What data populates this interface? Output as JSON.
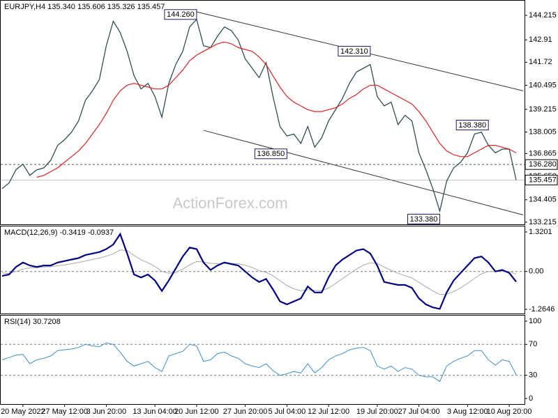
{
  "chart_data": {
    "type": "financial",
    "header": "EURJPY,H4  135.340 135.606 135.326 135.457",
    "watermark": "ActionForex.com",
    "categories": [
      null,
      null,
      null,
      "20 May 2022",
      null,
      null,
      null,
      null,
      null,
      "27 May 12:00",
      null,
      null,
      null,
      null,
      null,
      "3 Jun 20:00",
      null,
      null,
      null,
      null,
      null,
      null,
      "13 Jun 04:00",
      null,
      null,
      null,
      null,
      null,
      "20 Jun 12:00",
      null,
      null,
      null,
      null,
      null,
      null,
      "27 Jun 20:00",
      null,
      null,
      null,
      null,
      null,
      "5 Jul 04:00",
      null,
      null,
      null,
      null,
      null,
      "12 Jul 12:00",
      null,
      null,
      null,
      null,
      null,
      null,
      "19 Jul 20:00",
      null,
      null,
      null,
      null,
      null,
      "27 Jul 04:00",
      null,
      null,
      null,
      null,
      null,
      null,
      "3 Aug 12:00",
      null,
      null,
      null,
      null,
      null,
      "10 Aug 20:00",
      null
    ],
    "price": {
      "ylim": [
        133.1,
        145.03
      ],
      "yticks": [
        144.215,
        142.91,
        141.72,
        140.495,
        139.215,
        138.005,
        136.865,
        {
          "value": 135.65,
          "label": "135.650"
        },
        134.405,
        133.215
      ],
      "close": {
        "color": "#2f4f4f",
        "values": [
          135.0,
          135.3,
          136.0,
          136.3,
          135.7,
          136.0,
          136.1,
          136.5,
          137.3,
          137.6,
          138.0,
          138.6,
          139.7,
          140.2,
          140.8,
          142.6,
          143.9,
          143.3,
          142.3,
          141.0,
          140.3,
          140.6,
          139.9,
          138.8,
          140.6,
          141.6,
          142.3,
          143.6,
          144.0,
          142.6,
          142.5,
          143.1,
          143.6,
          143.4,
          142.9,
          141.9,
          141.4,
          140.9,
          141.7,
          139.9,
          138.3,
          137.8,
          137.9,
          137.4,
          138.3,
          137.2,
          137.7,
          138.6,
          139.2,
          139.8,
          140.6,
          141.2,
          141.4,
          141.6,
          139.9,
          139.4,
          139.6,
          138.4,
          138.9,
          138.6,
          136.9,
          136.0,
          135.0,
          133.8,
          135.4,
          136.1,
          136.4,
          136.9,
          137.9,
          138.0,
          137.3,
          136.9,
          137.1,
          137.1,
          135.457
        ]
      },
      "ma": {
        "color": "#e02020",
        "values": [
          null,
          null,
          null,
          null,
          null,
          135.6,
          135.7,
          135.9,
          136.1,
          136.4,
          136.7,
          137.0,
          137.4,
          137.9,
          138.4,
          139.0,
          139.7,
          140.2,
          140.5,
          140.6,
          140.5,
          140.4,
          140.3,
          140.3,
          140.5,
          140.9,
          141.3,
          141.8,
          142.1,
          142.3,
          142.5,
          142.7,
          142.8,
          142.7,
          142.5,
          142.4,
          142.3,
          142.0,
          141.6,
          141.0,
          140.4,
          139.9,
          139.6,
          139.4,
          139.2,
          139.1,
          139.1,
          139.2,
          139.3,
          139.5,
          139.8,
          140.0,
          140.3,
          140.5,
          140.5,
          140.3,
          140.1,
          139.9,
          139.7,
          139.5,
          139.1,
          138.6,
          138.0,
          137.4,
          137.0,
          136.8,
          136.7,
          136.7,
          136.9,
          137.1,
          137.3,
          137.3,
          137.2,
          137.1,
          136.9
        ]
      },
      "trendlines": [
        {
          "x": [
            28,
            75
          ],
          "y": [
            144.4,
            140.2
          ]
        },
        {
          "x": [
            29,
            75
          ],
          "y": [
            138.1,
            133.6
          ]
        }
      ],
      "level": {
        "value": 136.28,
        "label": "136.280"
      },
      "last": 135.457,
      "annotations": [
        {
          "x": 28,
          "value": 144.26,
          "label": "144.260"
        },
        {
          "x": 53,
          "value": 142.31,
          "label": "142.310"
        },
        {
          "x": 41,
          "value": 136.85,
          "label": "136.850"
        },
        {
          "x": 70,
          "value": 138.38,
          "label": "138.380"
        },
        {
          "x": 63,
          "value": 133.38,
          "label": "133.380"
        }
      ]
    },
    "macd": {
      "title": "MACD(12,26,9) -0.3419 -0.0937",
      "ylim": [
        -1.404,
        1.506
      ],
      "yticks": [
        1.3201,
        {
          "value": 0,
          "label": "0.00"
        },
        -1.2646
      ],
      "levels": [
        0
      ],
      "series": [
        {
          "color": "#000080",
          "values": [
            -0.15,
            -0.1,
            0.15,
            0.3,
            0.2,
            0.15,
            0.2,
            0.2,
            0.3,
            0.35,
            0.4,
            0.45,
            0.55,
            0.6,
            0.65,
            0.75,
            0.9,
            1.25,
            0.6,
            -0.1,
            -0.2,
            -0.1,
            -0.3,
            -0.65,
            -0.3,
            0.1,
            0.5,
            0.8,
            0.75,
            0.3,
            0.05,
            0.2,
            0.3,
            0.25,
            0.2,
            0.0,
            -0.2,
            -0.35,
            -0.25,
            -0.6,
            -1.0,
            -1.1,
            -1.0,
            -0.9,
            -0.5,
            -0.7,
            -0.7,
            -0.2,
            0.2,
            0.4,
            0.55,
            0.7,
            0.75,
            0.6,
            0.2,
            -0.35,
            -0.4,
            -0.45,
            -0.45,
            -0.55,
            -0.9,
            -1.1,
            -1.2,
            -1.25,
            -0.7,
            -0.3,
            -0.05,
            0.2,
            0.45,
            0.5,
            0.3,
            0.0,
            0.05,
            -0.05,
            -0.3419
          ]
        },
        {
          "color": "#a8a8a8",
          "values": [
            -0.05,
            -0.07,
            0.0,
            0.08,
            0.12,
            0.13,
            0.15,
            0.16,
            0.19,
            0.22,
            0.26,
            0.3,
            0.35,
            0.4,
            0.45,
            0.51,
            0.59,
            0.72,
            0.7,
            0.54,
            0.39,
            0.29,
            0.17,
            0.0,
            -0.06,
            -0.03,
            0.08,
            0.22,
            0.33,
            0.32,
            0.27,
            0.26,
            0.27,
            0.27,
            0.26,
            0.21,
            0.13,
            0.03,
            -0.03,
            -0.14,
            -0.31,
            -0.47,
            -0.58,
            -0.64,
            -0.61,
            -0.63,
            -0.64,
            -0.55,
            -0.4,
            -0.24,
            -0.08,
            0.08,
            0.21,
            0.29,
            0.27,
            0.15,
            0.04,
            -0.06,
            -0.14,
            -0.22,
            -0.36,
            -0.51,
            -0.65,
            -0.77,
            -0.76,
            -0.67,
            -0.55,
            -0.4,
            -0.23,
            -0.08,
            0.0,
            0.0,
            0.01,
            0.0,
            -0.0937
          ]
        }
      ]
    },
    "rsi": {
      "title": "RSI(14) 30.7208",
      "ylim": [
        -7.2,
        107.2
      ],
      "yticks": [
        100,
        70,
        30,
        0
      ],
      "levels": [
        70,
        30
      ],
      "color": "#3a8fd0",
      "values": [
        50,
        53,
        56,
        57,
        45,
        50,
        52,
        55,
        62,
        63,
        64,
        66,
        70,
        68,
        67,
        72,
        70,
        60,
        48,
        42,
        45,
        48,
        40,
        35,
        55,
        58,
        61,
        70,
        68,
        48,
        50,
        58,
        60,
        55,
        52,
        45,
        42,
        40,
        45,
        36,
        30,
        32,
        35,
        33,
        45,
        33,
        40,
        50,
        55,
        58,
        63,
        65,
        66,
        62,
        42,
        38,
        42,
        35,
        40,
        38,
        30,
        28,
        28,
        22,
        42,
        48,
        52,
        55,
        62,
        62,
        50,
        43,
        50,
        48,
        30.7208
      ]
    }
  }
}
